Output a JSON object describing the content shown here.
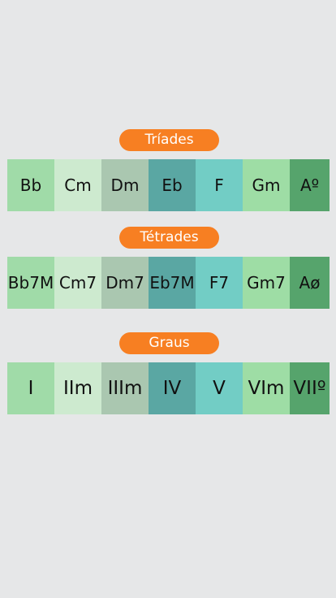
{
  "colors": {
    "background": "#e6e7e8",
    "accent": "#f77f22",
    "cell_colors": [
      "#a0dba8",
      "#cdeacf",
      "#aac7b0",
      "#5aa7a3",
      "#72cdc5",
      "#9edda5",
      "#56a46c"
    ]
  },
  "sections": [
    {
      "title": "Tríades",
      "cells": [
        "Bb",
        "Cm",
        "Dm",
        "Eb",
        "F",
        "Gm",
        "Aº"
      ]
    },
    {
      "title": "Tétrades",
      "cells": [
        "Bb7M",
        "Cm7",
        "Dm7",
        "Eb7M",
        "F7",
        "Gm7",
        "Aø"
      ]
    },
    {
      "title": "Graus",
      "cells": [
        "I",
        "IIm",
        "IIIm",
        "IV",
        "V",
        "VIm",
        "VIIº"
      ]
    }
  ]
}
